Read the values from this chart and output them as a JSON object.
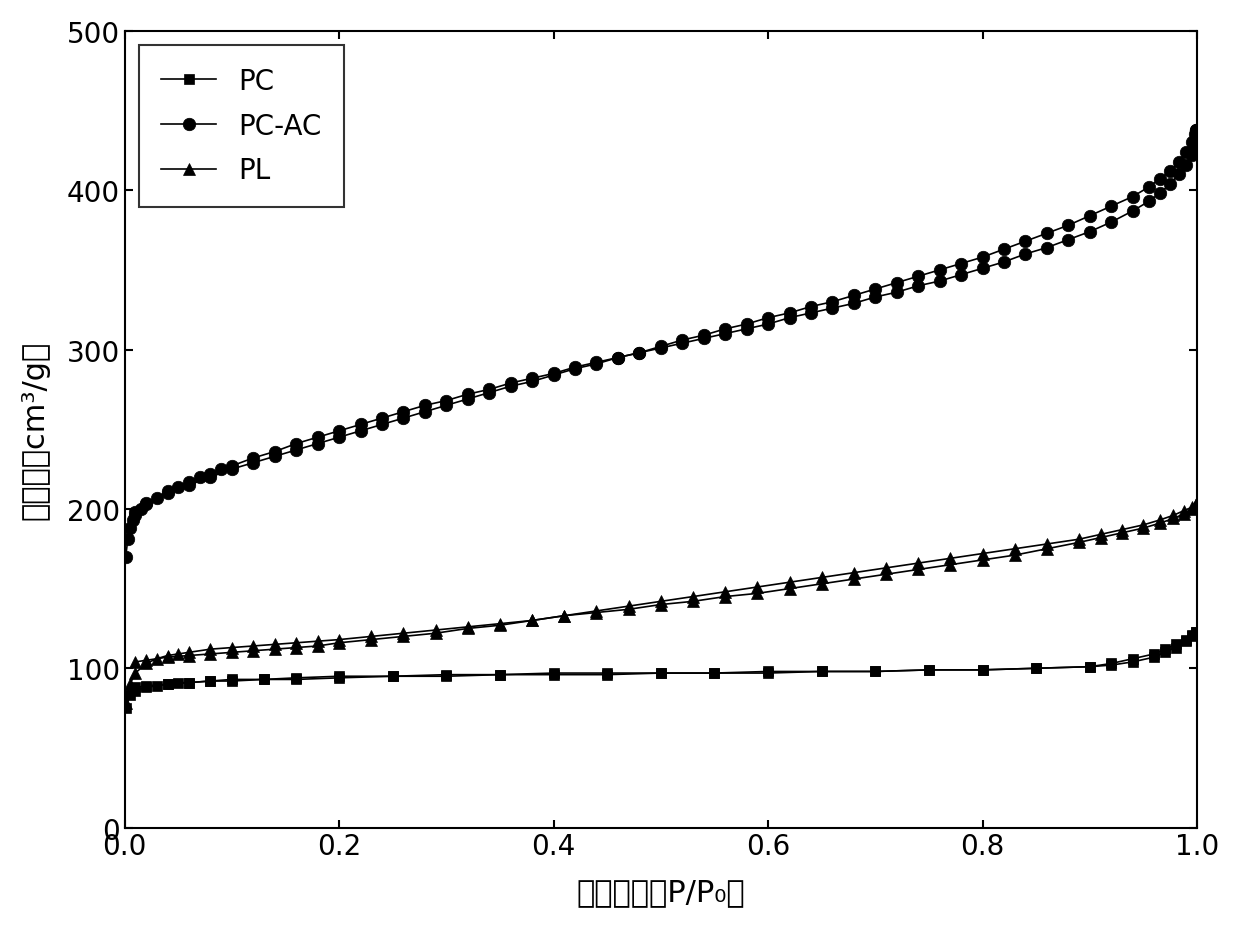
{
  "xlabel": "相对压力（P/P₀）",
  "ylabel": "吸附量（cm³/g）",
  "xlim": [
    0.0,
    1.0
  ],
  "ylim": [
    0,
    500
  ],
  "yticks": [
    0,
    100,
    200,
    300,
    400,
    500
  ],
  "xticks": [
    0.0,
    0.2,
    0.4,
    0.6,
    0.8,
    1.0
  ],
  "background_color": "#ffffff",
  "series": [
    {
      "label": "PC",
      "marker": "s",
      "adsorption_x": [
        0.001,
        0.005,
        0.01,
        0.02,
        0.03,
        0.04,
        0.05,
        0.06,
        0.08,
        0.1,
        0.13,
        0.16,
        0.2,
        0.25,
        0.3,
        0.35,
        0.4,
        0.45,
        0.5,
        0.55,
        0.6,
        0.65,
        0.7,
        0.75,
        0.8,
        0.85,
        0.9,
        0.92,
        0.94,
        0.96,
        0.97,
        0.98,
        0.99,
        0.995,
        0.999
      ],
      "adsorption_y": [
        75,
        83,
        86,
        88,
        89,
        90,
        91,
        91,
        92,
        93,
        93,
        94,
        95,
        95,
        96,
        96,
        97,
        97,
        97,
        97,
        98,
        98,
        98,
        99,
        99,
        100,
        101,
        102,
        104,
        107,
        110,
        113,
        117,
        120,
        123
      ],
      "desorption_x": [
        0.999,
        0.995,
        0.99,
        0.98,
        0.97,
        0.96,
        0.94,
        0.92,
        0.9,
        0.85,
        0.8,
        0.75,
        0.7,
        0.65,
        0.6,
        0.55,
        0.5,
        0.45,
        0.4,
        0.35,
        0.3,
        0.25,
        0.2,
        0.16,
        0.13,
        0.1,
        0.08,
        0.06,
        0.04,
        0.02,
        0.01
      ],
      "desorption_y": [
        123,
        121,
        118,
        115,
        112,
        109,
        106,
        103,
        101,
        100,
        99,
        99,
        98,
        98,
        97,
        97,
        97,
        96,
        96,
        96,
        95,
        95,
        94,
        93,
        93,
        92,
        92,
        91,
        90,
        89,
        88
      ]
    },
    {
      "label": "PC-AC",
      "marker": "o",
      "adsorption_x": [
        0.001,
        0.003,
        0.005,
        0.008,
        0.01,
        0.015,
        0.02,
        0.03,
        0.04,
        0.05,
        0.06,
        0.07,
        0.08,
        0.09,
        0.1,
        0.12,
        0.14,
        0.16,
        0.18,
        0.2,
        0.22,
        0.24,
        0.26,
        0.28,
        0.3,
        0.32,
        0.34,
        0.36,
        0.38,
        0.4,
        0.42,
        0.44,
        0.46,
        0.48,
        0.5,
        0.52,
        0.54,
        0.56,
        0.58,
        0.6,
        0.62,
        0.64,
        0.66,
        0.68,
        0.7,
        0.72,
        0.74,
        0.76,
        0.78,
        0.8,
        0.82,
        0.84,
        0.86,
        0.88,
        0.9,
        0.92,
        0.94,
        0.955,
        0.965,
        0.975,
        0.983,
        0.99,
        0.995,
        0.998,
        0.999
      ],
      "adsorption_y": [
        170,
        181,
        188,
        193,
        196,
        200,
        203,
        207,
        211,
        214,
        217,
        220,
        222,
        225,
        227,
        232,
        236,
        241,
        245,
        249,
        253,
        257,
        261,
        265,
        268,
        272,
        275,
        279,
        282,
        285,
        289,
        292,
        295,
        298,
        301,
        304,
        307,
        310,
        313,
        316,
        320,
        323,
        326,
        329,
        333,
        336,
        340,
        343,
        347,
        351,
        355,
        360,
        364,
        369,
        374,
        380,
        387,
        393,
        398,
        404,
        410,
        416,
        422,
        428,
        438
      ],
      "desorption_x": [
        0.999,
        0.998,
        0.995,
        0.99,
        0.983,
        0.975,
        0.965,
        0.955,
        0.94,
        0.92,
        0.9,
        0.88,
        0.86,
        0.84,
        0.82,
        0.8,
        0.78,
        0.76,
        0.74,
        0.72,
        0.7,
        0.68,
        0.66,
        0.64,
        0.62,
        0.6,
        0.58,
        0.56,
        0.54,
        0.52,
        0.5,
        0.48,
        0.46,
        0.44,
        0.42,
        0.4,
        0.38,
        0.36,
        0.34,
        0.32,
        0.3,
        0.28,
        0.26,
        0.24,
        0.22,
        0.2,
        0.18,
        0.16,
        0.14,
        0.12,
        0.1,
        0.08,
        0.06,
        0.04,
        0.02,
        0.01
      ],
      "desorption_y": [
        438,
        435,
        430,
        424,
        418,
        412,
        407,
        402,
        396,
        390,
        384,
        378,
        373,
        368,
        363,
        358,
        354,
        350,
        346,
        342,
        338,
        334,
        330,
        327,
        323,
        320,
        316,
        313,
        309,
        306,
        302,
        298,
        295,
        291,
        288,
        284,
        280,
        277,
        273,
        269,
        265,
        261,
        257,
        253,
        249,
        245,
        241,
        237,
        233,
        229,
        225,
        220,
        215,
        210,
        204,
        198
      ]
    },
    {
      "label": "PL",
      "marker": "^",
      "adsorption_x": [
        0.001,
        0.005,
        0.01,
        0.02,
        0.03,
        0.04,
        0.05,
        0.06,
        0.08,
        0.1,
        0.12,
        0.14,
        0.16,
        0.18,
        0.2,
        0.23,
        0.26,
        0.29,
        0.32,
        0.35,
        0.38,
        0.41,
        0.44,
        0.47,
        0.5,
        0.53,
        0.56,
        0.59,
        0.62,
        0.65,
        0.68,
        0.71,
        0.74,
        0.77,
        0.8,
        0.83,
        0.86,
        0.89,
        0.91,
        0.93,
        0.95,
        0.965,
        0.978,
        0.988,
        0.995,
        0.999
      ],
      "adsorption_y": [
        78,
        90,
        97,
        103,
        106,
        108,
        109,
        110,
        112,
        113,
        114,
        115,
        116,
        117,
        118,
        120,
        122,
        124,
        126,
        128,
        130,
        133,
        135,
        137,
        140,
        142,
        145,
        147,
        150,
        153,
        156,
        159,
        162,
        165,
        168,
        171,
        175,
        179,
        182,
        185,
        188,
        191,
        194,
        197,
        200,
        203
      ],
      "desorption_x": [
        0.999,
        0.995,
        0.988,
        0.978,
        0.965,
        0.95,
        0.93,
        0.91,
        0.89,
        0.86,
        0.83,
        0.8,
        0.77,
        0.74,
        0.71,
        0.68,
        0.65,
        0.62,
        0.59,
        0.56,
        0.53,
        0.5,
        0.47,
        0.44,
        0.41,
        0.38,
        0.35,
        0.32,
        0.29,
        0.26,
        0.23,
        0.2,
        0.18,
        0.16,
        0.14,
        0.12,
        0.1,
        0.08,
        0.06,
        0.04,
        0.02,
        0.01
      ],
      "desorption_y": [
        203,
        201,
        199,
        196,
        193,
        190,
        187,
        184,
        181,
        178,
        175,
        172,
        169,
        166,
        163,
        160,
        157,
        154,
        151,
        148,
        145,
        142,
        139,
        136,
        133,
        130,
        127,
        125,
        122,
        120,
        118,
        116,
        114,
        113,
        112,
        111,
        110,
        109,
        108,
        107,
        105,
        104
      ]
    }
  ],
  "legend_loc": "upper left",
  "markersize": 7,
  "linewidth": 1.2,
  "font_size_labels": 22,
  "font_size_ticks": 20,
  "font_size_legend": 20
}
